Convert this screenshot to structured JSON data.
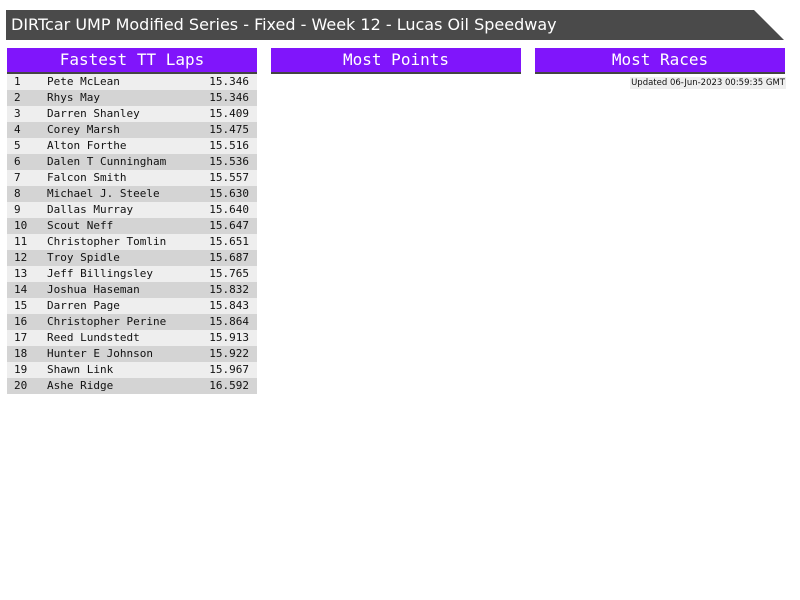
{
  "header": {
    "title": "DIRTcar UMP Modified Series - Fixed - Week 12 - Lucas Oil Speedway"
  },
  "panels": {
    "fastest": "Fastest TT Laps",
    "points": "Most Points",
    "races": "Most Races"
  },
  "updated": "Updated 06-Jun-2023 00:59:35 GMT",
  "laps": [
    {
      "rank": "1",
      "name": "Pete McLean",
      "time": "15.346"
    },
    {
      "rank": "2",
      "name": "Rhys May",
      "time": "15.346"
    },
    {
      "rank": "3",
      "name": "Darren Shanley",
      "time": "15.409"
    },
    {
      "rank": "4",
      "name": "Corey Marsh",
      "time": "15.475"
    },
    {
      "rank": "5",
      "name": "Alton Forthe",
      "time": "15.516"
    },
    {
      "rank": "6",
      "name": "Dalen T Cunningham",
      "time": "15.536"
    },
    {
      "rank": "7",
      "name": "Falcon Smith",
      "time": "15.557"
    },
    {
      "rank": "8",
      "name": "Michael J. Steele",
      "time": "15.630"
    },
    {
      "rank": "9",
      "name": "Dallas Murray",
      "time": "15.640"
    },
    {
      "rank": "10",
      "name": "Scout Neff",
      "time": "15.647"
    },
    {
      "rank": "11",
      "name": "Christopher Tomlin",
      "time": "15.651"
    },
    {
      "rank": "12",
      "name": "Troy Spidle",
      "time": "15.687"
    },
    {
      "rank": "13",
      "name": "Jeff Billingsley",
      "time": "15.765"
    },
    {
      "rank": "14",
      "name": "Joshua Haseman",
      "time": "15.832"
    },
    {
      "rank": "15",
      "name": "Darren Page",
      "time": "15.843"
    },
    {
      "rank": "16",
      "name": "Christopher Perine",
      "time": "15.864"
    },
    {
      "rank": "17",
      "name": "Reed Lundstedt",
      "time": "15.913"
    },
    {
      "rank": "18",
      "name": "Hunter E Johnson",
      "time": "15.922"
    },
    {
      "rank": "19",
      "name": "Shawn Link",
      "time": "15.967"
    },
    {
      "rank": "20",
      "name": "Ashe Ridge",
      "time": "16.592"
    }
  ]
}
